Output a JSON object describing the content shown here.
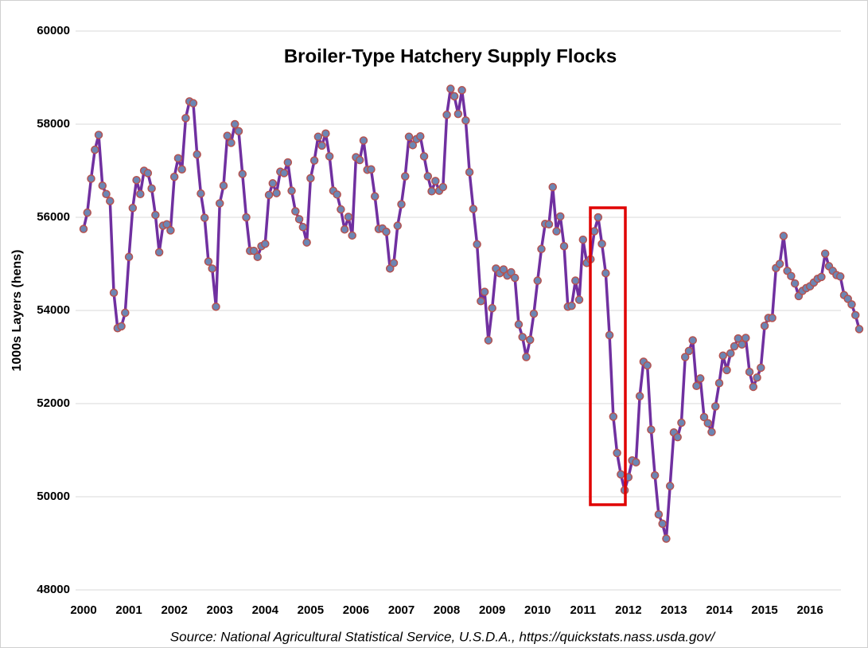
{
  "chart_data": {
    "type": "line",
    "title": "Broiler-Type Hatchery Supply Flocks",
    "y_label": "1000s Layers (hens)",
    "source": "Source: National Agricultural Statistical Service, U.S.D.A., https://quickstats.nass.usda.gov/",
    "categories": [
      "2000",
      null,
      null,
      null,
      null,
      null,
      null,
      null,
      null,
      null,
      null,
      null,
      "2001",
      null,
      null,
      null,
      null,
      null,
      null,
      null,
      null,
      null,
      null,
      null,
      "2002",
      null,
      null,
      null,
      null,
      null,
      null,
      null,
      null,
      null,
      null,
      null,
      "2003",
      null,
      null,
      null,
      null,
      null,
      null,
      null,
      null,
      null,
      null,
      null,
      "2004",
      null,
      null,
      null,
      null,
      null,
      null,
      null,
      null,
      null,
      null,
      null,
      "2005",
      null,
      null,
      null,
      null,
      null,
      null,
      null,
      null,
      null,
      null,
      null,
      "2006",
      null,
      null,
      null,
      null,
      null,
      null,
      null,
      null,
      null,
      null,
      null,
      "2007",
      null,
      null,
      null,
      null,
      null,
      null,
      null,
      null,
      null,
      null,
      null,
      "2008",
      null,
      null,
      null,
      null,
      null,
      null,
      null,
      null,
      null,
      null,
      null,
      "2009",
      null,
      null,
      null,
      null,
      null,
      null,
      null,
      null,
      null,
      null,
      null,
      "2010",
      null,
      null,
      null,
      null,
      null,
      null,
      null,
      null,
      null,
      null,
      null,
      "2011",
      null,
      null,
      null,
      null,
      null,
      null,
      null,
      null,
      null,
      null,
      null,
      "2012",
      null,
      null,
      null,
      null,
      null,
      null,
      null,
      null,
      null,
      null,
      null,
      "2013",
      null,
      null,
      null,
      null,
      null,
      null,
      null,
      null,
      null,
      null,
      null,
      "2014",
      null,
      null,
      null,
      null,
      null,
      null,
      null,
      null,
      null,
      null,
      null,
      "2015",
      null,
      null,
      null,
      null,
      null,
      null,
      null,
      null,
      null,
      null,
      null,
      "2016",
      null,
      null,
      null,
      null,
      null,
      null,
      null,
      null,
      null,
      null,
      null,
      null,
      null
    ],
    "series": [
      {
        "color": "#7030a0",
        "marker_color": "#6c86b4",
        "marker_edge": "#b5524f",
        "values": [
          55750,
          56100,
          56830,
          57450,
          57770,
          56680,
          56500,
          56350,
          54380,
          53620,
          53660,
          53950,
          55150,
          56200,
          56800,
          56500,
          57000,
          56950,
          56620,
          56050,
          55250,
          55820,
          55850,
          55720,
          56870,
          57270,
          57030,
          58130,
          58490,
          58450,
          57350,
          56510,
          55990,
          55050,
          54900,
          54080,
          56300,
          56680,
          57750,
          57600,
          58000,
          57850,
          56930,
          56000,
          55280,
          55280,
          55150,
          55380,
          55430,
          56480,
          56730,
          56520,
          56980,
          56950,
          57180,
          56570,
          56130,
          55960,
          55790,
          55460,
          56840,
          57220,
          57730,
          57540,
          57800,
          57310,
          56570,
          56490,
          56170,
          55740,
          56010,
          55610,
          57290,
          57230,
          57650,
          57020,
          57030,
          56450,
          55750,
          55760,
          55690,
          54900,
          55020,
          55820,
          56280,
          56880,
          57730,
          57550,
          57680,
          57740,
          57310,
          56880,
          56560,
          56780,
          56570,
          56650,
          58200,
          58760,
          58600,
          58220,
          58730,
          58080,
          56970,
          56180,
          55420,
          54200,
          54400,
          53360,
          54050,
          54900,
          54800,
          54880,
          54750,
          54820,
          54700,
          53700,
          53430,
          53000,
          53370,
          53930,
          54640,
          55320,
          55860,
          55850,
          56650,
          55700,
          56020,
          55380,
          54080,
          54100,
          54640,
          54230,
          55520,
          55020,
          55100,
          55700,
          56000,
          55430,
          54800,
          53470,
          51720,
          50940,
          50480,
          50140,
          50420,
          50780,
          50740,
          52160,
          52900,
          52820,
          51440,
          50460,
          49620,
          49420,
          49100,
          50230,
          51380,
          51280,
          51590,
          53000,
          53130,
          53360,
          52380,
          52540,
          51710,
          51580,
          51390,
          51940,
          52440,
          53030,
          52720,
          53080,
          53230,
          53400,
          53270,
          53410,
          52680,
          52360,
          52560,
          52770,
          53670,
          53840,
          53840,
          54910,
          55000,
          55600,
          54850,
          54740,
          54580,
          54310,
          54420,
          54480,
          54520,
          54600,
          54680,
          54720,
          55220,
          54950,
          54850,
          54760,
          54730,
          54330,
          54250,
          54130,
          53900,
          53600
        ]
      }
    ],
    "ylim": [
      48000,
      60000
    ],
    "yticks": [
      48000,
      50000,
      52000,
      54000,
      56000,
      58000,
      60000
    ],
    "grid": true
  }
}
